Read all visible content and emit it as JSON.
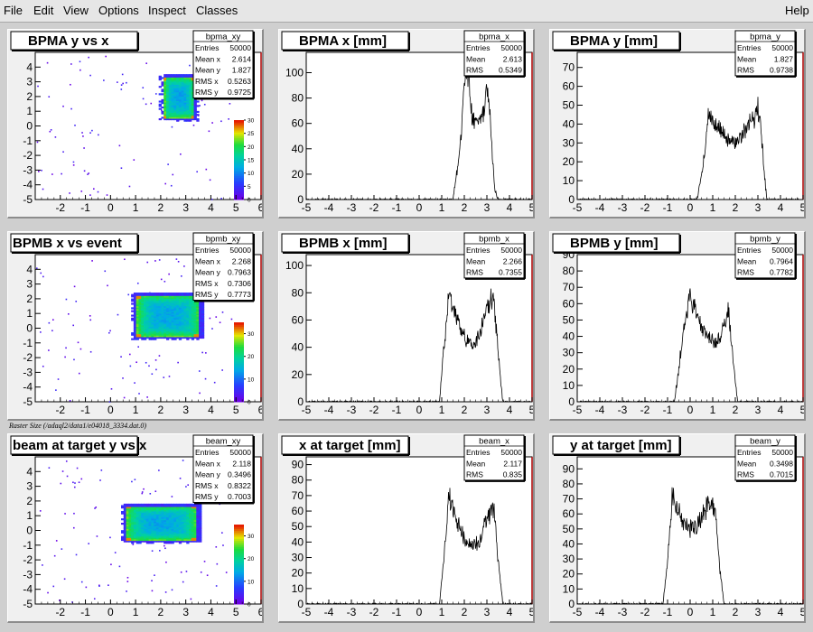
{
  "menu": {
    "file": "File",
    "edit": "Edit",
    "view": "View",
    "options": "Options",
    "inspect": "Inspect",
    "classes": "Classes",
    "help": "Help"
  },
  "caption": "Raster Size (/adaql2/data1/e04018_3334.dat.0)",
  "colors": {
    "menu_bg": "#e6e6e6",
    "pad_bg": "#f0f0f0",
    "axis_right": "#aa0000",
    "hist_line": "#000000"
  },
  "chart_data": [
    {
      "id": "bpma_xy",
      "type": "heatmap",
      "title": "BPMA y vs x",
      "stats_name": "bpma_xy",
      "stats": [
        [
          "Entries",
          "50000"
        ],
        [
          "Mean x",
          "2.614"
        ],
        [
          "Mean y",
          "1.827"
        ],
        [
          "RMS x",
          "0.5263"
        ],
        [
          "RMS y",
          "0.9725"
        ]
      ],
      "xlim": [
        -3,
        6
      ],
      "xticks": [
        -2,
        -1,
        0,
        1,
        2,
        3,
        4,
        5,
        6
      ],
      "ylim": [
        -5,
        5
      ],
      "yticks": [
        -5,
        -4,
        -3,
        -2,
        -1,
        0,
        1,
        2,
        3,
        4
      ],
      "region": {
        "x": [
          2.1,
          3.3
        ],
        "y": [
          0.5,
          3.3
        ]
      },
      "zlim": [
        0,
        30
      ],
      "zticks": [
        0,
        5,
        10,
        15,
        20,
        25,
        30
      ]
    },
    {
      "id": "bpma_x",
      "type": "line",
      "title": "BPMA x [mm]",
      "stats_name": "bpma_x",
      "stats": [
        [
          "Entries",
          "50000"
        ],
        [
          "Mean",
          "2.613"
        ],
        [
          "RMS",
          "0.5349"
        ]
      ],
      "xlim": [
        -5,
        5
      ],
      "xticks": [
        -5,
        -4,
        -3,
        -2,
        -1,
        0,
        1,
        2,
        3,
        4,
        5
      ],
      "ylim": [
        0,
        116
      ],
      "yticks": [
        0,
        20,
        40,
        60,
        80,
        100
      ],
      "x": [
        1.5,
        1.7,
        1.9,
        2.0,
        2.1,
        2.2,
        2.35,
        2.5,
        2.7,
        2.9,
        3.0,
        3.1,
        3.2,
        3.35,
        3.5
      ],
      "y": [
        0,
        25,
        60,
        95,
        108,
        95,
        65,
        60,
        62,
        70,
        90,
        80,
        45,
        8,
        0
      ]
    },
    {
      "id": "bpma_y",
      "type": "line",
      "title": "BPMA y [mm]",
      "stats_name": "bpma_y",
      "stats": [
        [
          "Entries",
          "50000"
        ],
        [
          "Mean",
          "1.827"
        ],
        [
          "RMS",
          "0.9738"
        ]
      ],
      "xlim": [
        -5,
        5
      ],
      "xticks": [
        -5,
        -4,
        -3,
        -2,
        -1,
        0,
        1,
        2,
        3,
        4,
        5
      ],
      "ylim": [
        0,
        78
      ],
      "yticks": [
        0,
        10,
        20,
        30,
        40,
        50,
        60,
        70
      ],
      "x": [
        0.3,
        0.5,
        0.7,
        0.8,
        1.0,
        1.3,
        1.6,
        1.9,
        2.2,
        2.5,
        2.8,
        3.0,
        3.15,
        3.3,
        3.4
      ],
      "y": [
        0,
        12,
        30,
        45,
        42,
        38,
        32,
        30,
        32,
        38,
        42,
        48,
        35,
        12,
        0
      ]
    },
    {
      "id": "bpmb_xy",
      "type": "heatmap",
      "title": "BPMB x vs event",
      "stats_name": "bpmb_xy",
      "stats": [
        [
          "Entries",
          "50000"
        ],
        [
          "Mean x",
          "2.268"
        ],
        [
          "Mean y",
          "0.7963"
        ],
        [
          "RMS x",
          "0.7306"
        ],
        [
          "RMS y",
          "0.7773"
        ]
      ],
      "xlim": [
        -3,
        6
      ],
      "xticks": [
        -2,
        -1,
        0,
        1,
        2,
        3,
        4,
        5,
        6
      ],
      "ylim": [
        -5,
        5
      ],
      "yticks": [
        -5,
        -4,
        -3,
        -2,
        -1,
        0,
        1,
        2,
        3,
        4
      ],
      "region": {
        "x": [
          1.0,
          3.5
        ],
        "y": [
          -0.6,
          2.2
        ]
      },
      "zlim": [
        0,
        35
      ],
      "zticks": [
        0,
        10,
        20,
        30
      ]
    },
    {
      "id": "bpmb_x",
      "type": "line",
      "title": "BPMB x [mm]",
      "stats_name": "bpmb_x",
      "stats": [
        [
          "Entries",
          "50000"
        ],
        [
          "Mean",
          "2.266"
        ],
        [
          "RMS",
          "0.7355"
        ]
      ],
      "xlim": [
        -5,
        5
      ],
      "xticks": [
        -5,
        -4,
        -3,
        -2,
        -1,
        0,
        1,
        2,
        3,
        4,
        5
      ],
      "ylim": [
        0,
        108
      ],
      "yticks": [
        0,
        20,
        40,
        60,
        80,
        100
      ],
      "x": [
        0.9,
        1.1,
        1.3,
        1.5,
        1.8,
        2.1,
        2.4,
        2.7,
        3.0,
        3.3,
        3.5,
        3.7
      ],
      "y": [
        0,
        40,
        78,
        70,
        55,
        45,
        40,
        50,
        68,
        78,
        35,
        0
      ]
    },
    {
      "id": "bpmb_y",
      "type": "line",
      "title": "BPMB y [mm]",
      "stats_name": "bpmb_y",
      "stats": [
        [
          "Entries",
          "50000"
        ],
        [
          "Mean",
          "0.7964"
        ],
        [
          "RMS",
          "0.7782"
        ]
      ],
      "xlim": [
        -5,
        5
      ],
      "xticks": [
        -5,
        -4,
        -3,
        -2,
        -1,
        0,
        1,
        2,
        3,
        4,
        5
      ],
      "ylim": [
        0,
        90
      ],
      "yticks": [
        0,
        10,
        20,
        30,
        40,
        50,
        60,
        70,
        80,
        90
      ],
      "x": [
        -0.7,
        -0.5,
        -0.3,
        0.0,
        0.2,
        0.5,
        0.8,
        1.1,
        1.4,
        1.7,
        1.9,
        2.1
      ],
      "y": [
        0,
        20,
        45,
        65,
        58,
        45,
        40,
        35,
        42,
        55,
        25,
        0
      ]
    },
    {
      "id": "beam_xy",
      "type": "heatmap",
      "title": "beam at target y vs x",
      "stats_name": "beam_xy",
      "stats": [
        [
          "Entries",
          "50000"
        ],
        [
          "Mean x",
          "2.118"
        ],
        [
          "Mean y",
          "0.3496"
        ],
        [
          "RMS x",
          "0.8322"
        ],
        [
          "RMS y",
          "0.7003"
        ]
      ],
      "xlim": [
        -3,
        6
      ],
      "xticks": [
        -2,
        -1,
        0,
        1,
        2,
        3,
        4,
        5,
        6
      ],
      "ylim": [
        -5,
        5
      ],
      "yticks": [
        -5,
        -4,
        -3,
        -2,
        -1,
        0,
        1,
        2,
        3,
        4
      ],
      "region": {
        "x": [
          0.6,
          3.4
        ],
        "y": [
          -0.7,
          1.6
        ]
      },
      "zlim": [
        0,
        35
      ],
      "zticks": [
        0,
        10,
        20,
        30
      ]
    },
    {
      "id": "beam_x",
      "type": "line",
      "title": "x at target [mm]",
      "stats_name": "beam_x",
      "stats": [
        [
          "Entries",
          "50000"
        ],
        [
          "Mean",
          "2.117"
        ],
        [
          "RMS",
          "0.835"
        ]
      ],
      "xlim": [
        -5,
        5
      ],
      "xticks": [
        -5,
        -4,
        -3,
        -2,
        -1,
        0,
        1,
        2,
        3,
        4,
        5
      ],
      "ylim": [
        0,
        95
      ],
      "yticks": [
        0,
        10,
        20,
        30,
        40,
        50,
        60,
        70,
        80,
        90
      ],
      "x": [
        0.9,
        1.1,
        1.3,
        1.5,
        1.8,
        2.1,
        2.4,
        2.7,
        3.0,
        3.3,
        3.5,
        3.7
      ],
      "y": [
        0,
        30,
        70,
        62,
        48,
        40,
        38,
        42,
        55,
        62,
        28,
        0
      ]
    },
    {
      "id": "beam_y",
      "type": "line",
      "title": "y at target [mm]",
      "stats_name": "beam_y",
      "stats": [
        [
          "Entries",
          "50000"
        ],
        [
          "Mean",
          "0.3498"
        ],
        [
          "RMS",
          "0.7015"
        ]
      ],
      "xlim": [
        -5,
        5
      ],
      "xticks": [
        -5,
        -4,
        -3,
        -2,
        -1,
        0,
        1,
        2,
        3,
        4,
        5
      ],
      "ylim": [
        0,
        98
      ],
      "yticks": [
        0,
        10,
        20,
        30,
        40,
        50,
        60,
        70,
        80,
        90
      ],
      "x": [
        -1.2,
        -1.0,
        -0.8,
        -0.6,
        -0.3,
        0.0,
        0.3,
        0.6,
        0.9,
        1.1,
        1.3,
        1.5
      ],
      "y": [
        0,
        30,
        72,
        65,
        55,
        50,
        52,
        60,
        70,
        62,
        25,
        0
      ]
    }
  ]
}
